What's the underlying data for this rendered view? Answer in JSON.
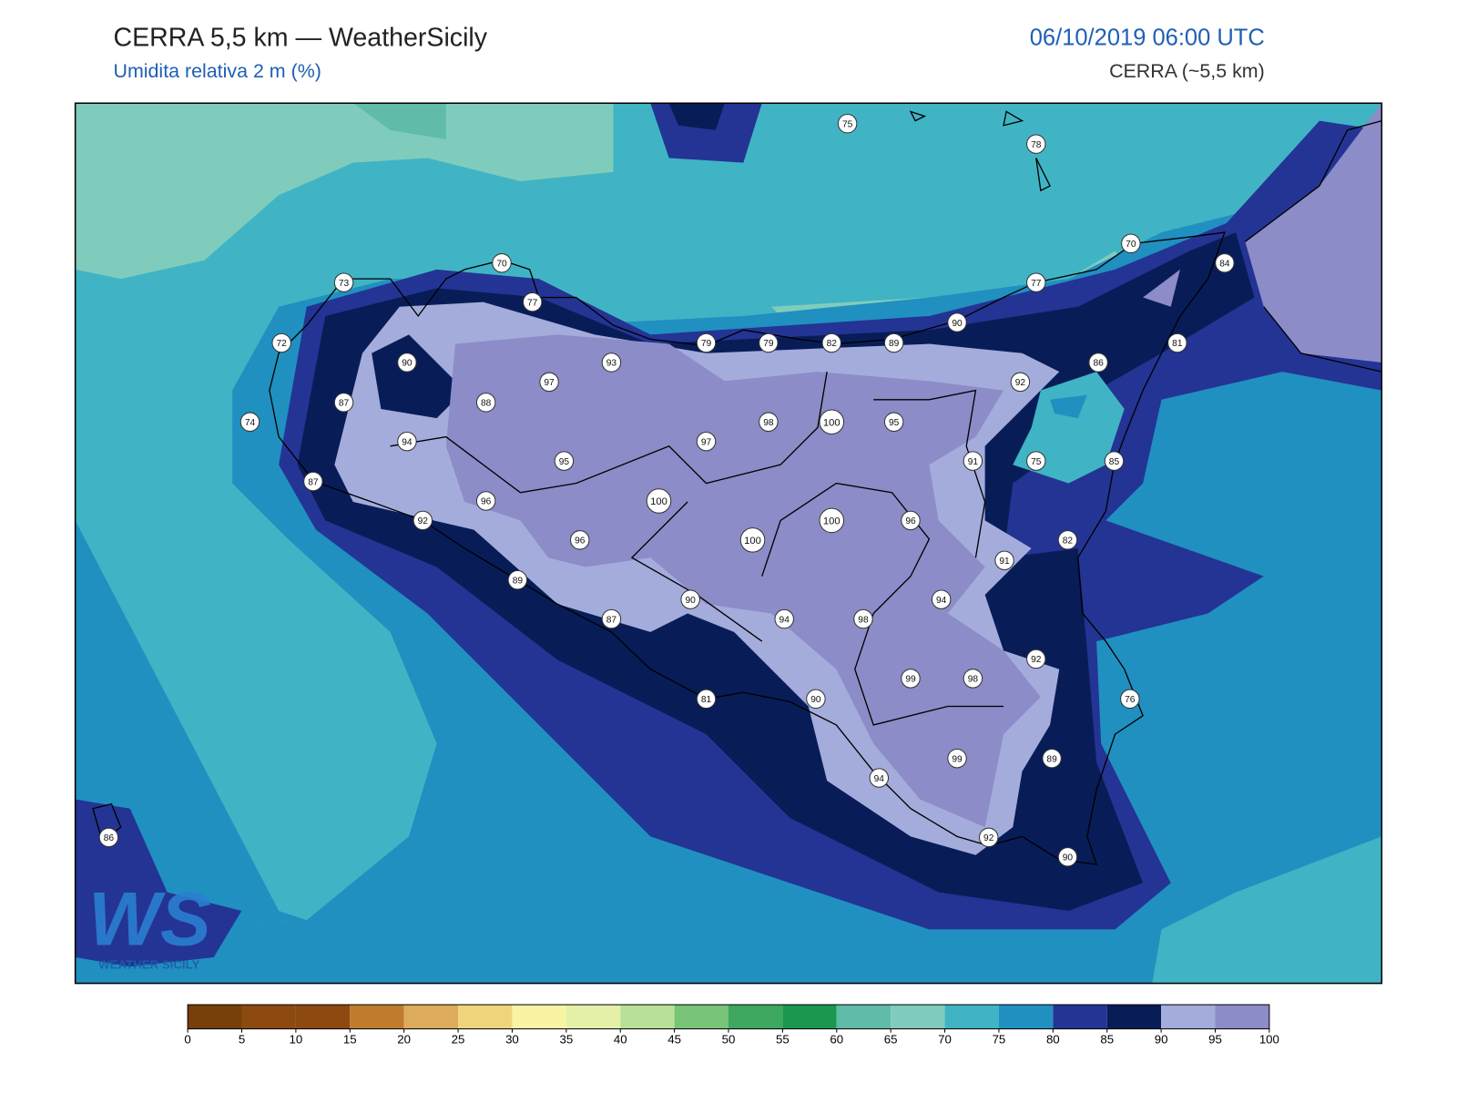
{
  "header": {
    "title": "CERRA 5,5 km — WeatherSicily",
    "subtitle": "Umidita relativa 2 m (%)",
    "datetime": "06/10/2019 06:00 UTC",
    "model": "CERRA (~5,5 km)"
  },
  "logo": {
    "initials": "WS",
    "name": "WEATHER SICILY"
  },
  "stations": [
    75,
    78,
    70,
    84,
    70,
    73,
    77,
    77,
    72,
    90,
    79,
    79,
    82,
    89,
    81,
    90,
    93,
    86,
    97,
    92,
    87,
    88,
    74,
    98,
    100,
    95,
    94,
    97,
    95,
    91,
    75,
    85,
    87,
    96,
    100,
    92,
    100,
    96,
    96,
    100,
    82,
    91,
    89,
    90,
    94,
    87,
    94,
    98,
    92,
    99,
    98,
    81,
    90,
    76,
    99,
    89,
    94,
    92,
    86,
    90
  ],
  "colorbar": {
    "ticks": [
      0,
      5,
      10,
      15,
      20,
      25,
      30,
      35,
      40,
      45,
      50,
      55,
      60,
      65,
      70,
      75,
      80,
      85,
      90,
      95,
      100
    ],
    "colors": [
      "#773f09",
      "#8c4a10",
      "#8c4a10",
      "#c07c2c",
      "#dcac5c",
      "#f0d47c",
      "#f8f4a4",
      "#e4f0a8",
      "#b8e098",
      "#78c478",
      "#3ea860",
      "#1a9850",
      "#60bca8",
      "#80ccbc",
      "#40b4c4",
      "#2090c0",
      "#243494",
      "#081d58",
      "#a4acdc",
      "#8c8cc8"
    ]
  }
}
